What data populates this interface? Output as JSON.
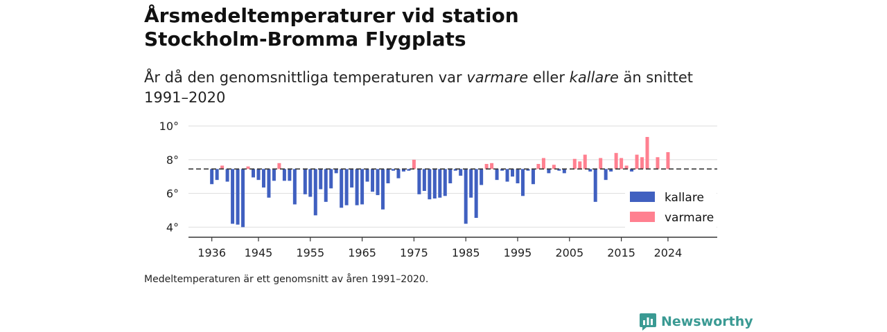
{
  "header": {
    "title_line1": "Årsmedeltemperaturer vid station",
    "title_line2": "Stockholm-Bromma Flygplats",
    "subtitle_part1": "År då den genomsnittliga temperaturen var ",
    "subtitle_em1": "varmare",
    "subtitle_part2": " eller ",
    "subtitle_em2": "kallare",
    "subtitle_part3": " än snittet 1991–2020"
  },
  "footnote": "Medeltemperaturen är ett genomsnitt av åren 1991–2020.",
  "brand": {
    "name": "Newsworthy",
    "icon": "newsworthy-logo-icon",
    "color": "#3a9a93"
  },
  "chart_data": {
    "type": "bar",
    "baseline": 7.45,
    "ylim": [
      3.4,
      10.5
    ],
    "yticks": [
      4,
      6,
      8,
      10
    ],
    "ytick_labels": [
      "4°",
      "6°",
      "8°",
      "10°"
    ],
    "xlim": [
      1931.5,
      2033.5
    ],
    "xticks": [
      1936,
      1945,
      1955,
      1965,
      1975,
      1985,
      1995,
      2005,
      2015,
      2024
    ],
    "xtick_labels": [
      "1936",
      "1945",
      "1955",
      "1965",
      "1975",
      "1985",
      "1995",
      "2005",
      "2015",
      "2024"
    ],
    "colors": {
      "kallare": "#4060c0",
      "varmare": "#ff8090",
      "baseline": "#333333",
      "grid": "#dddddd"
    },
    "legend": {
      "position": "bottom-right",
      "items": [
        {
          "key": "kallare",
          "label": "kallare"
        },
        {
          "key": "varmare",
          "label": "varmare"
        }
      ]
    },
    "x": [
      1936,
      1937,
      1938,
      1939,
      1940,
      1941,
      1942,
      1943,
      1944,
      1945,
      1946,
      1947,
      1948,
      1949,
      1950,
      1951,
      1952,
      1954,
      1955,
      1956,
      1957,
      1958,
      1959,
      1960,
      1961,
      1962,
      1963,
      1964,
      1965,
      1966,
      1967,
      1968,
      1969,
      1970,
      1971,
      1972,
      1973,
      1974,
      1975,
      1976,
      1977,
      1978,
      1979,
      1980,
      1981,
      1982,
      1983,
      1984,
      1985,
      1986,
      1987,
      1988,
      1989,
      1990,
      1991,
      1992,
      1993,
      1994,
      1995,
      1996,
      1997,
      1998,
      1999,
      2000,
      2001,
      2002,
      2003,
      2004,
      2006,
      2007,
      2008,
      2009,
      2010,
      2011,
      2012,
      2013,
      2014,
      2015,
      2016,
      2017,
      2018,
      2019,
      2020,
      2022,
      2024
    ],
    "values": [
      6.55,
      6.8,
      7.65,
      6.7,
      4.2,
      4.15,
      4.0,
      7.6,
      6.95,
      6.8,
      6.35,
      5.75,
      6.75,
      7.8,
      6.75,
      6.75,
      5.35,
      5.95,
      5.8,
      4.7,
      6.25,
      5.5,
      6.3,
      7.2,
      5.15,
      5.3,
      6.35,
      5.3,
      5.35,
      6.7,
      6.1,
      5.9,
      5.05,
      6.6,
      7.35,
      6.9,
      7.3,
      7.35,
      8.0,
      5.95,
      6.15,
      5.65,
      5.7,
      5.75,
      5.85,
      6.6,
      7.35,
      7.05,
      4.2,
      5.75,
      4.55,
      6.5,
      7.75,
      7.8,
      6.8,
      7.35,
      6.7,
      7.0,
      6.6,
      5.85,
      7.35,
      6.55,
      7.75,
      8.1,
      7.2,
      7.7,
      7.35,
      7.2,
      8.05,
      7.9,
      8.3,
      7.3,
      5.5,
      8.1,
      6.8,
      7.3,
      8.4,
      8.1,
      7.65,
      7.3,
      8.3,
      8.15,
      9.35,
      8.15,
      8.45
    ]
  }
}
